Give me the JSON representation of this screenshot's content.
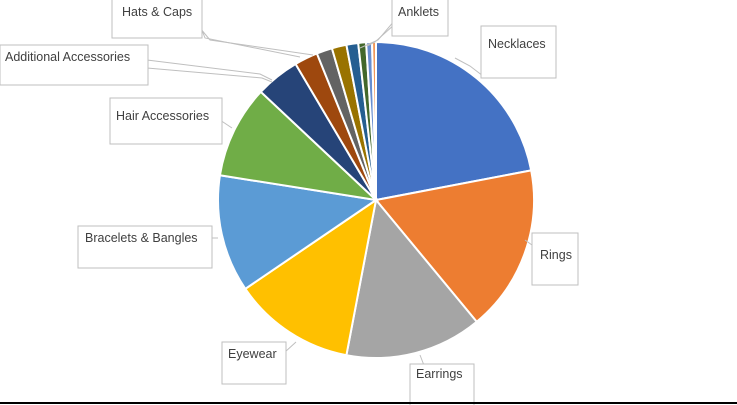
{
  "chart_data": {
    "type": "pie",
    "title": "",
    "categories": [
      "Necklaces",
      "Rings",
      "Earrings",
      "Eyewear",
      "Bracelets & Bangles",
      "Hair Accessories",
      "Additional Accessories",
      "Hats & Caps",
      "",
      "",
      "Anklets",
      "",
      "",
      ""
    ],
    "values": [
      22.0,
      17.0,
      14.0,
      12.5,
      12.0,
      9.5,
      4.5,
      2.4,
      1.6,
      1.5,
      1.2,
      0.8,
      0.6,
      0.4
    ],
    "colors": [
      "#4472c4",
      "#ed7d31",
      "#a5a5a5",
      "#ffc000",
      "#5b9bd5",
      "#70ad47",
      "#264478",
      "#9e480e",
      "#636363",
      "#997300",
      "#255e91",
      "#43682b",
      "#698ed0",
      "#f1975a"
    ],
    "start_angle_deg": 0,
    "direction": "clockwise",
    "labels": [
      {
        "index": 0,
        "text": "Necklaces"
      },
      {
        "index": 1,
        "text": "Rings"
      },
      {
        "index": 2,
        "text": "Earrings"
      },
      {
        "index": 3,
        "text": "Eyewear"
      },
      {
        "index": 4,
        "text": "Bracelets & Bangles"
      },
      {
        "index": 5,
        "text": "Hair Accessories"
      },
      {
        "index": 6,
        "text": "Additional Accessories"
      },
      {
        "index": 7,
        "text": "Hats & Caps"
      },
      {
        "index": 10,
        "text": "Anklets"
      }
    ]
  }
}
